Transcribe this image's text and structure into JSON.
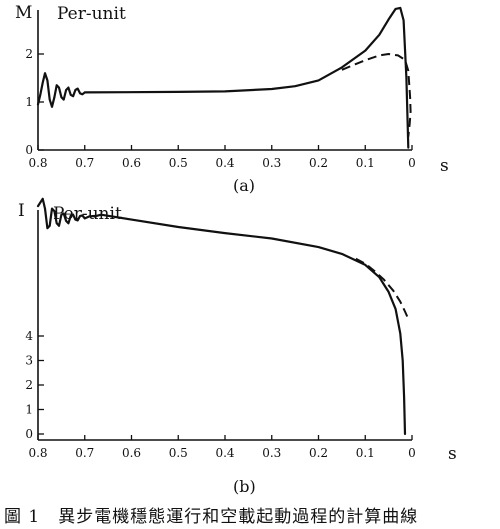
{
  "caption": "圖 1　異步電機穩態運行和空載起動過程的計算曲線",
  "chart_data": [
    {
      "type": "line",
      "panel_label": "(a)",
      "ylabel": "M",
      "unit_note": "Per-unit",
      "xlabel": "s",
      "x_reversed": true,
      "xlim": [
        0.8,
        0
      ],
      "ylim": [
        0,
        3
      ],
      "x_ticks": [
        {
          "value": 0.8,
          "label": "0.8"
        },
        {
          "value": 0.7,
          "label": "0.7"
        },
        {
          "value": 0.6,
          "label": "0.6"
        },
        {
          "value": 0.5,
          "label": "0.5"
        },
        {
          "value": 0.4,
          "label": "0.4"
        },
        {
          "value": 0.3,
          "label": "0.3"
        },
        {
          "value": 0.2,
          "label": "0.2"
        },
        {
          "value": 0.1,
          "label": "0.1"
        },
        {
          "value": 0.0,
          "label": "0"
        }
      ],
      "y_ticks": [
        {
          "value": 0,
          "label": "0"
        },
        {
          "value": 1,
          "label": "1"
        },
        {
          "value": 2,
          "label": "2"
        }
      ],
      "series": [
        {
          "style": "solid",
          "points": [
            [
              0.8,
              0.95
            ],
            [
              0.795,
              1.15
            ],
            [
              0.79,
              1.4
            ],
            [
              0.785,
              1.6
            ],
            [
              0.78,
              1.45
            ],
            [
              0.775,
              1.05
            ],
            [
              0.77,
              0.9
            ],
            [
              0.765,
              1.1
            ],
            [
              0.76,
              1.35
            ],
            [
              0.755,
              1.3
            ],
            [
              0.75,
              1.1
            ],
            [
              0.745,
              1.05
            ],
            [
              0.74,
              1.25
            ],
            [
              0.735,
              1.3
            ],
            [
              0.73,
              1.15
            ],
            [
              0.725,
              1.12
            ],
            [
              0.72,
              1.25
            ],
            [
              0.715,
              1.28
            ],
            [
              0.71,
              1.18
            ],
            [
              0.705,
              1.16
            ],
            [
              0.7,
              1.2
            ],
            [
              0.5,
              1.21
            ],
            [
              0.4,
              1.22
            ],
            [
              0.3,
              1.27
            ],
            [
              0.25,
              1.33
            ],
            [
              0.2,
              1.45
            ],
            [
              0.15,
              1.72
            ],
            [
              0.1,
              2.07
            ],
            [
              0.07,
              2.4
            ],
            [
              0.05,
              2.72
            ],
            [
              0.035,
              2.94
            ],
            [
              0.025,
              2.96
            ],
            [
              0.018,
              2.7
            ],
            [
              0.012,
              1.5
            ],
            [
              0.008,
              0.05
            ]
          ]
        },
        {
          "style": "dashed",
          "points": [
            [
              0.15,
              1.67
            ],
            [
              0.1,
              1.87
            ],
            [
              0.07,
              1.97
            ],
            [
              0.05,
              2.0
            ],
            [
              0.03,
              1.97
            ],
            [
              0.015,
              1.88
            ],
            [
              0.008,
              1.65
            ],
            [
              0.004,
              1.1
            ],
            [
              0.003,
              0.8
            ],
            [
              0.005,
              0.55
            ],
            [
              0.008,
              0.28
            ]
          ]
        }
      ]
    },
    {
      "type": "line",
      "panel_label": "(b)",
      "ylabel": "I",
      "unit_note": "Per-unit",
      "xlabel": "s",
      "x_reversed": true,
      "xlim": [
        0.8,
        0
      ],
      "ylim": [
        0,
        10
      ],
      "x_ticks": [
        {
          "value": 0.8,
          "label": "0.8"
        },
        {
          "value": 0.7,
          "label": "0.7"
        },
        {
          "value": 0.6,
          "label": "0.6"
        },
        {
          "value": 0.5,
          "label": "0.5"
        },
        {
          "value": 0.4,
          "label": "0.4"
        },
        {
          "value": 0.3,
          "label": "0.3"
        },
        {
          "value": 0.2,
          "label": "0.2"
        },
        {
          "value": 0.1,
          "label": "0.1"
        },
        {
          "value": 0.0,
          "label": "0"
        }
      ],
      "y_ticks": [
        {
          "value": 0,
          "label": "0"
        },
        {
          "value": 1,
          "label": "1"
        },
        {
          "value": 2,
          "label": "2"
        },
        {
          "value": 3,
          "label": "3"
        },
        {
          "value": 4,
          "label": "4"
        }
      ],
      "series": [
        {
          "style": "solid",
          "points": [
            [
              0.8,
              9.3
            ],
            [
              0.79,
              9.6
            ],
            [
              0.785,
              9.2
            ],
            [
              0.78,
              8.4
            ],
            [
              0.775,
              8.5
            ],
            [
              0.77,
              9.2
            ],
            [
              0.765,
              9.1
            ],
            [
              0.76,
              8.6
            ],
            [
              0.755,
              8.5
            ],
            [
              0.75,
              8.95
            ],
            [
              0.745,
              9.0
            ],
            [
              0.74,
              8.7
            ],
            [
              0.735,
              8.6
            ],
            [
              0.73,
              8.9
            ],
            [
              0.725,
              8.95
            ],
            [
              0.72,
              8.75
            ],
            [
              0.715,
              8.72
            ],
            [
              0.71,
              8.9
            ],
            [
              0.705,
              8.92
            ],
            [
              0.7,
              8.8
            ],
            [
              0.69,
              8.88
            ],
            [
              0.675,
              8.9
            ],
            [
              0.665,
              8.95
            ],
            [
              0.6,
              8.75
            ],
            [
              0.5,
              8.45
            ],
            [
              0.4,
              8.2
            ],
            [
              0.3,
              7.98
            ],
            [
              0.2,
              7.63
            ],
            [
              0.15,
              7.35
            ],
            [
              0.1,
              6.9
            ],
            [
              0.07,
              6.4
            ],
            [
              0.05,
              5.8
            ],
            [
              0.035,
              5.1
            ],
            [
              0.025,
              4.1
            ],
            [
              0.02,
              3.0
            ],
            [
              0.017,
              1.5
            ],
            [
              0.015,
              0.0
            ]
          ]
        },
        {
          "style": "dashed",
          "points": [
            [
              0.12,
              7.15
            ],
            [
              0.1,
              6.95
            ],
            [
              0.08,
              6.65
            ],
            [
              0.06,
              6.3
            ],
            [
              0.04,
              5.85
            ],
            [
              0.025,
              5.4
            ],
            [
              0.015,
              5.0
            ],
            [
              0.008,
              4.7
            ]
          ]
        }
      ]
    }
  ]
}
